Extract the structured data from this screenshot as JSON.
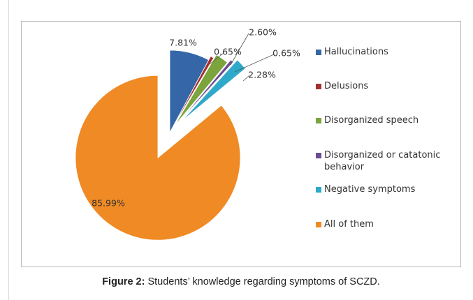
{
  "chart_data": {
    "type": "pie",
    "categories": [
      "Hallucinations",
      "Delusions",
      "Disorganized speech",
      "Disorganized or catatonic behavior",
      "Negative symptoms",
      "All of them"
    ],
    "values": [
      7.81,
      0.65,
      2.6,
      0.65,
      2.28,
      85.99
    ],
    "value_labels": [
      "7.81%",
      "0.65%",
      "2.60%",
      "0.65%",
      "2.28%",
      "85.99%"
    ],
    "colors": [
      "#3566a8",
      "#a3302f",
      "#7ba43c",
      "#6b4c93",
      "#2fa9c9",
      "#f08a24"
    ],
    "legend": "right"
  },
  "caption": {
    "label": "Figure 2:",
    "text": "Students’ knowledge regarding symptoms of SCZD."
  }
}
